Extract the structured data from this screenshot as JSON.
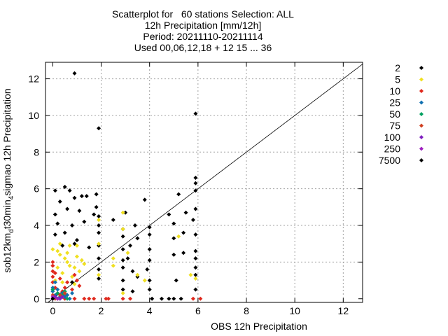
{
  "chart_data": {
    "type": "scatter",
    "title_lines": [
      "Scatterplot for   60 stations Selection: ALL",
      "12h Precipitation [mm/12h]",
      "Period: 20211110-20211114",
      "Used 00,06,12,18 + 12 15 ... 36"
    ],
    "xlabel": "OBS 12h Precipitation",
    "ylabel_parts": [
      "sob12km",
      "d",
      "t30min",
      "4",
      "sigmao 12h Precipitation"
    ],
    "xlim": [
      -0.3,
      12.8
    ],
    "ylim": [
      -0.2,
      12.9
    ],
    "xticks": [
      "0",
      "2",
      "4",
      "6",
      "8",
      "10",
      "12"
    ],
    "yticks": [
      "0",
      "2",
      "4",
      "6",
      "8",
      "10",
      "12"
    ],
    "grid": true,
    "legend_position": "right-outside",
    "diagonal": true,
    "series": [
      {
        "name": "2",
        "color": "#000000",
        "points": [
          [
            0.9,
            12.3
          ],
          [
            1.9,
            9.3
          ],
          [
            5.9,
            10.1
          ],
          [
            5.9,
            6.6
          ],
          [
            5.9,
            6.3
          ],
          [
            5.9,
            5.9
          ],
          [
            0.1,
            5.9
          ],
          [
            0.5,
            6.1
          ],
          [
            0.7,
            5.9
          ],
          [
            1.2,
            5.6
          ],
          [
            1.8,
            5.7
          ],
          [
            0.3,
            5.3
          ],
          [
            0.9,
            5.5
          ],
          [
            1.4,
            5.6
          ],
          [
            5.2,
            5.7
          ],
          [
            3.8,
            5.4
          ],
          [
            0.1,
            4.6
          ],
          [
            0.6,
            4.9
          ],
          [
            1.1,
            4.8
          ],
          [
            1.7,
            4.6
          ],
          [
            1.8,
            5.0
          ],
          [
            1.9,
            4.5
          ],
          [
            2.5,
            4.3
          ],
          [
            3.0,
            4.7
          ],
          [
            4.8,
            4.6
          ],
          [
            5.5,
            4.7
          ],
          [
            5.9,
            4.9
          ],
          [
            0.2,
            4.1
          ],
          [
            0.8,
            4.0
          ],
          [
            1.3,
            4.2
          ],
          [
            1.9,
            4.0
          ],
          [
            2.9,
            3.8
          ],
          [
            3.4,
            4.0
          ],
          [
            4.0,
            3.9
          ],
          [
            5.0,
            4.1
          ],
          [
            5.8,
            4.3
          ],
          [
            0.1,
            3.5
          ],
          [
            0.5,
            3.6
          ],
          [
            1.0,
            3.2
          ],
          [
            1.9,
            3.6
          ],
          [
            2.9,
            3.4
          ],
          [
            3.5,
            3.3
          ],
          [
            4.0,
            3.5
          ],
          [
            5.0,
            3.3
          ],
          [
            5.4,
            3.6
          ],
          [
            5.9,
            3.5
          ],
          [
            0.4,
            2.9
          ],
          [
            0.9,
            3.0
          ],
          [
            1.5,
            2.8
          ],
          [
            1.9,
            2.9
          ],
          [
            2.9,
            2.7
          ],
          [
            3.2,
            2.9
          ],
          [
            4.0,
            2.7
          ],
          [
            5.0,
            2.4
          ],
          [
            5.4,
            2.5
          ],
          [
            5.9,
            2.6
          ],
          [
            1.9,
            2.2
          ],
          [
            2.9,
            2.1
          ],
          [
            3.1,
            2.2
          ],
          [
            4.0,
            2.1
          ],
          [
            5.9,
            2.2
          ],
          [
            1.9,
            1.6
          ],
          [
            2.9,
            1.7
          ],
          [
            3.3,
            1.5
          ],
          [
            3.9,
            1.6
          ],
          [
            5.9,
            1.7
          ],
          [
            1.9,
            1.1
          ],
          [
            2.9,
            1.0
          ],
          [
            3.5,
            1.2
          ],
          [
            4.0,
            1.0
          ],
          [
            5.1,
            1.0
          ],
          [
            5.9,
            1.3
          ],
          [
            0.8,
            0.9
          ],
          [
            2.9,
            0.5
          ],
          [
            3.3,
            0.4
          ],
          [
            4.0,
            0.5
          ],
          [
            5.9,
            0.5
          ],
          [
            4.1,
            0.0
          ],
          [
            4.5,
            0.0
          ],
          [
            4.8,
            0.0
          ],
          [
            5.0,
            0.0
          ],
          [
            5.3,
            0.0
          ]
        ]
      },
      {
        "name": "5",
        "color": "#f0e020",
        "points": [
          [
            0.0,
            2.7
          ],
          [
            0.2,
            2.6
          ],
          [
            0.3,
            2.4
          ],
          [
            0.5,
            2.2
          ],
          [
            0.6,
            2.0
          ],
          [
            0.7,
            1.8
          ],
          [
            0.9,
            1.7
          ],
          [
            1.0,
            2.3
          ],
          [
            1.1,
            1.5
          ],
          [
            1.3,
            1.9
          ],
          [
            0.4,
            1.4
          ],
          [
            0.8,
            1.2
          ],
          [
            0.2,
            1.7
          ],
          [
            0.6,
            2.5
          ],
          [
            1.0,
            2.9
          ],
          [
            1.2,
            2.1
          ],
          [
            1.9,
            3.0
          ],
          [
            1.9,
            4.3
          ],
          [
            2.5,
            2.2
          ],
          [
            2.5,
            1.8
          ],
          [
            2.9,
            3.8
          ],
          [
            3.1,
            2.5
          ],
          [
            3.5,
            1.3
          ],
          [
            3.8,
            1.0
          ],
          [
            5.2,
            3.4
          ],
          [
            5.7,
            1.3
          ],
          [
            5.9,
            1.1
          ],
          [
            0.3,
            3.0
          ],
          [
            0.7,
            2.9
          ],
          [
            2.9,
            4.7
          ],
          [
            1.9,
            1.3
          ],
          [
            2.9,
            0.3
          ],
          [
            0.1,
            1.0
          ],
          [
            0.4,
            0.9
          ],
          [
            0.9,
            0.8
          ]
        ]
      },
      {
        "name": "10",
        "color": "#e0281c",
        "points": [
          [
            0.0,
            2.0
          ],
          [
            0.0,
            1.5
          ],
          [
            0.0,
            1.2
          ],
          [
            0.0,
            0.9
          ],
          [
            0.1,
            0.6
          ],
          [
            0.2,
            0.3
          ],
          [
            0.3,
            1.1
          ],
          [
            0.4,
            0.4
          ],
          [
            0.5,
            0.2
          ],
          [
            0.6,
            0.9
          ],
          [
            0.8,
            0.5
          ],
          [
            0.9,
            1.3
          ],
          [
            1.0,
            1.0
          ],
          [
            1.1,
            0.7
          ],
          [
            0.0,
            1.8
          ],
          [
            0.2,
            0.0
          ],
          [
            0.5,
            0.0
          ],
          [
            0.9,
            0.0
          ],
          [
            1.3,
            0.0
          ],
          [
            1.5,
            0.0
          ],
          [
            1.7,
            0.0
          ],
          [
            2.2,
            0.0
          ],
          [
            2.3,
            0.0
          ],
          [
            2.9,
            0.0
          ],
          [
            3.2,
            0.0
          ],
          [
            5.8,
            0.0
          ],
          [
            6.1,
            0.0
          ],
          [
            0.1,
            1.4
          ],
          [
            0.5,
            0.6
          ]
        ]
      },
      {
        "name": "25",
        "color": "#1070b0",
        "points": [
          [
            0.0,
            0.6
          ],
          [
            0.0,
            0.4
          ],
          [
            0.1,
            0.9
          ],
          [
            0.1,
            0.2
          ],
          [
            0.2,
            0.5
          ],
          [
            0.3,
            0.1
          ],
          [
            0.4,
            0.3
          ],
          [
            0.5,
            0.1
          ],
          [
            0.6,
            0.2
          ],
          [
            0.7,
            0.0
          ],
          [
            0.8,
            0.3
          ]
        ]
      },
      {
        "name": "50",
        "color": "#00a060",
        "points": [
          [
            0.0,
            0.5
          ],
          [
            0.1,
            0.1
          ],
          [
            0.2,
            0.3
          ],
          [
            0.3,
            0.0
          ],
          [
            0.4,
            0.2
          ],
          [
            0.5,
            0.4
          ],
          [
            0.6,
            0.0
          ]
        ]
      },
      {
        "name": "75",
        "color": "#d04020",
        "points": [
          [
            0.0,
            0.2
          ],
          [
            0.1,
            0.0
          ],
          [
            0.3,
            0.2
          ],
          [
            0.5,
            0.3
          ]
        ]
      },
      {
        "name": "100",
        "color": "#8020c0",
        "points": [
          [
            0.0,
            0.0
          ],
          [
            0.1,
            0.1
          ],
          [
            0.3,
            0.0
          ],
          [
            0.4,
            0.1
          ]
        ]
      },
      {
        "name": "250",
        "color": "#a020c0",
        "points": [
          [
            0.0,
            0.1
          ],
          [
            0.2,
            0.0
          ]
        ]
      },
      {
        "name": "7500",
        "color": "#000000",
        "points": [
          [
            0.0,
            0.0
          ]
        ]
      }
    ]
  }
}
